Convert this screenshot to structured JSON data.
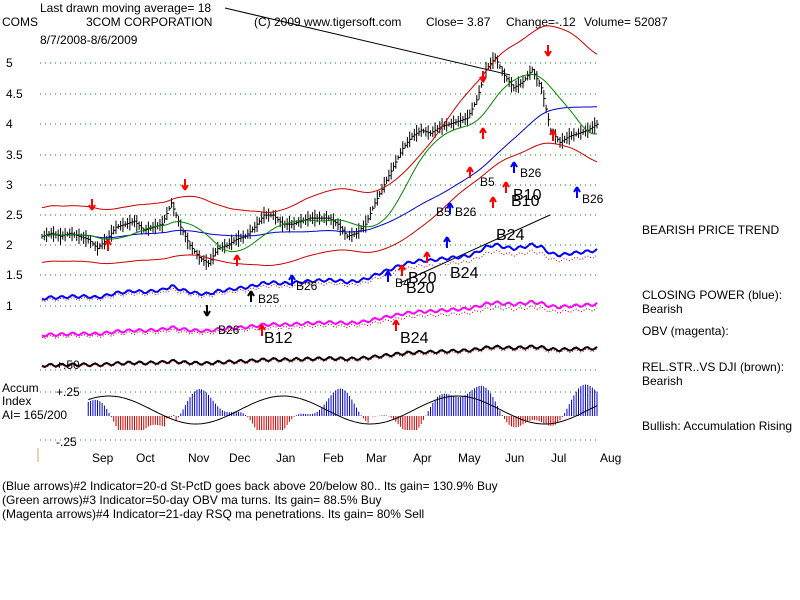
{
  "header": {
    "title_line": "Last drawn moving average= 18",
    "ticker": "COMS",
    "company": "3COM CORPORATION",
    "copyright": "(C) 2009 www.tigersoft.com",
    "close": "Close=  3.87",
    "change": "Change=-.12",
    "volume": "Volume= 52087",
    "daterange": "8/7/2008-8/6/2009"
  },
  "price_axis": [
    "5",
    "4.5",
    "4",
    "3.5",
    "3",
    "2.5",
    "2",
    "1.5",
    "1"
  ],
  "month_labels": [
    "Sep",
    "Oct",
    "Nov",
    "Dec",
    "Jan",
    "Feb",
    "Mar",
    "Apr",
    "May",
    "Jun",
    "Jul",
    "Aug"
  ],
  "accum": {
    "label1": "Accum",
    "label2": "Index",
    "label3": "AI= 165/200",
    "tick_top": "+.50",
    "tick_mid": "+.25",
    "tick_bot": "-.25"
  },
  "right_labels": {
    "trend": "BEARISH PRICE TREND",
    "cp1": "CLOSING POWER (blue):",
    "cp2": "Bearish",
    "obv": "OBV (magenta):",
    "rs1": "REL.STR..VS DJI (brown):",
    "rs2": "Bearish",
    "ai": "Bullish: Accumulation Rising"
  },
  "signals": {
    "b5": "B5",
    "b5b": "B5",
    "b26a": "B26",
    "b26b": "B26",
    "b26c": "B26",
    "b26d": "B26",
    "b26e": "B26",
    "b10": "B10",
    "b10b": "B10",
    "b24a": "B24",
    "b24b": "B24",
    "b24c": "B24",
    "b20a": "B20",
    "b20b": "B20",
    "b25": "B25",
    "b12": "B12",
    "b4": "B4"
  },
  "footer": {
    "line1": "(Blue arrows)#2 Indicator=20-d St-PctD goes back above 20/below 80.. Its gain= 130.9% Buy",
    "line2": "(Green arrows)#3 Indicator=50-day OBV ma turns. Its gain= 88.5% Buy",
    "line3": "(Magenta arrows)#4 Indicator=21-day RSQ ma penetrations. Its gain= 80% Sell"
  },
  "colors": {
    "price": "#000000",
    "ma": "#0000cc",
    "band": "#cc0000",
    "green": "#008800",
    "blue": "#0000ff",
    "magenta": "#ff00ff",
    "brown": "#000000",
    "grid": "#008800",
    "arrow_red": "#ff0000",
    "arrow_blue": "#0000ff"
  },
  "chart_data": {
    "type": "line",
    "price_axis_ticks": [
      5,
      4.5,
      4,
      3.5,
      3,
      2.5,
      2,
      1.5,
      1
    ],
    "months": [
      "Sep",
      "Oct",
      "Nov",
      "Dec",
      "Jan",
      "Feb",
      "Mar",
      "Apr",
      "May",
      "Jun",
      "Jul",
      "Aug"
    ],
    "close": [
      2.15,
      2.2,
      2.15,
      2.2,
      2.15,
      2.1,
      1.95,
      2.1,
      2.3,
      2.35,
      2.4,
      2.25,
      2.3,
      2.35,
      2.7,
      2.3,
      2.0,
      1.8,
      1.7,
      1.95,
      2.0,
      2.1,
      2.15,
      2.3,
      2.5,
      2.5,
      2.35,
      2.35,
      2.4,
      2.45,
      2.45,
      2.45,
      2.35,
      2.15,
      2.2,
      2.35,
      2.7,
      3.0,
      3.3,
      3.6,
      3.8,
      3.9,
      3.85,
      3.95,
      4.0,
      4.05,
      4.1,
      4.4,
      4.9,
      5.1,
      4.8,
      4.6,
      4.7,
      4.9,
      4.6,
      3.9,
      3.7,
      3.8,
      3.85,
      3.9,
      4.0
    ],
    "moving_average_days": 18
  }
}
